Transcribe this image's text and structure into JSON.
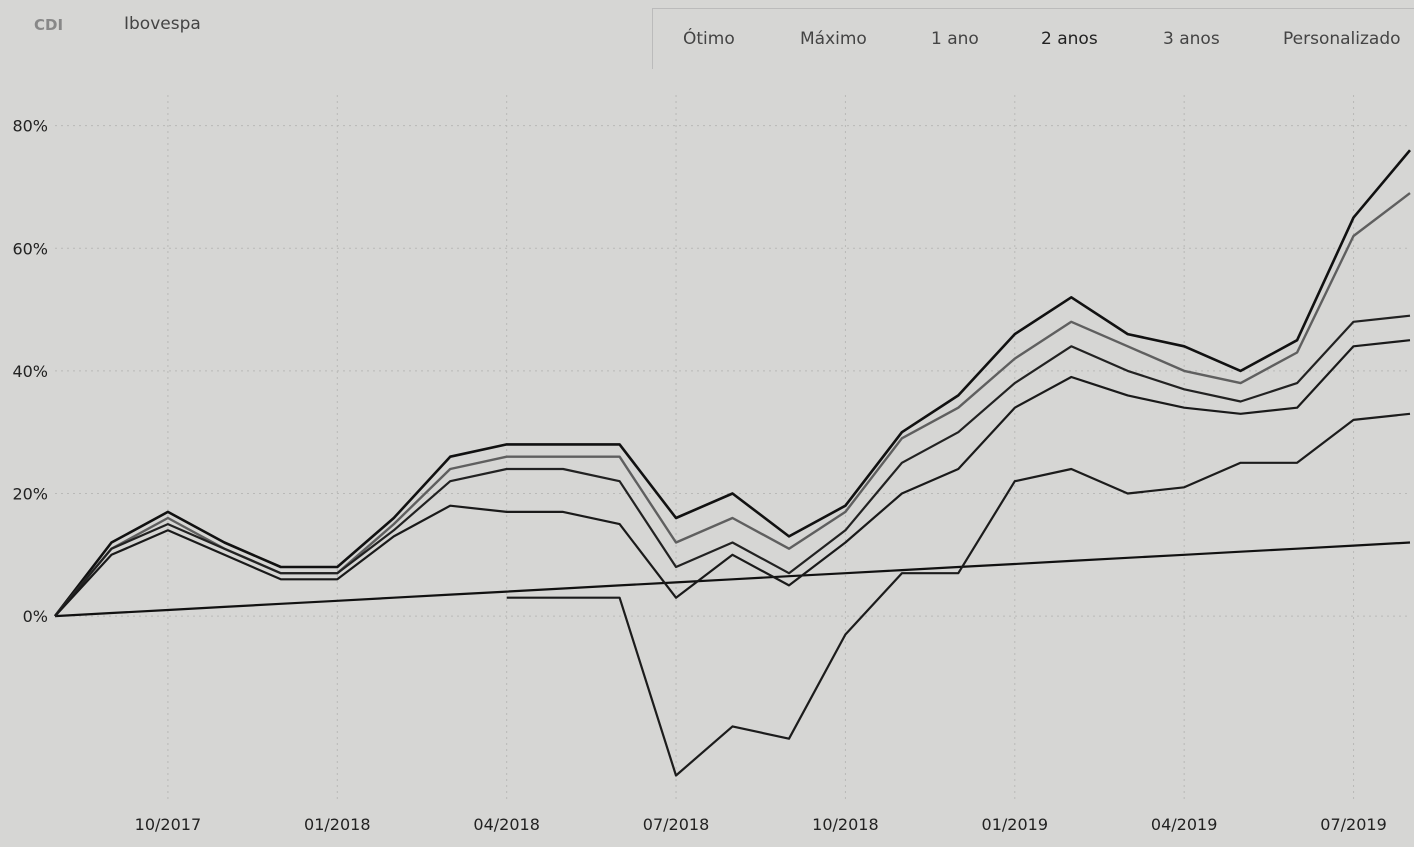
{
  "legend": {
    "items": [
      {
        "label": "CDI",
        "color": "#222222"
      },
      {
        "label": "Ibovespa",
        "color": "#222222"
      }
    ]
  },
  "range_selector": {
    "buttons": [
      "Ótimo",
      "Máximo",
      "1 ano",
      "2 anos",
      "3 anos",
      "Personalizado"
    ],
    "active": "2 anos"
  },
  "chart_data": {
    "type": "line",
    "title": "",
    "xlabel": "",
    "ylabel": "",
    "x_ticks": [
      "10/2017",
      "01/2018",
      "04/2018",
      "07/2018",
      "10/2018",
      "01/2019",
      "04/2019",
      "07/2019"
    ],
    "y_ticks": [
      "0%",
      "20%",
      "40%",
      "60%",
      "80%"
    ],
    "ylim": [
      -30,
      85
    ],
    "xlim": [
      "2017-08",
      "2019-08"
    ],
    "grid": true,
    "x": [
      "2017-08",
      "2017-09",
      "2017-10",
      "2017-11",
      "2017-12",
      "2018-01",
      "2018-02",
      "2018-03",
      "2018-04",
      "2018-05",
      "2018-06",
      "2018-07",
      "2018-08",
      "2018-09",
      "2018-10",
      "2018-11",
      "2018-12",
      "2019-01",
      "2019-02",
      "2019-03",
      "2019-04",
      "2019-05",
      "2019-06",
      "2019-07",
      "2019-08"
    ],
    "series": [
      {
        "name": "CDI",
        "color": "#111111",
        "values": [
          0,
          0.5,
          1,
          1.5,
          2,
          2.5,
          3,
          3.5,
          4,
          4.5,
          5,
          5.5,
          6,
          6.5,
          7,
          7.5,
          8,
          8.5,
          9,
          9.5,
          10,
          10.5,
          11,
          11.5,
          12
        ]
      },
      {
        "values": [
          0,
          12,
          17,
          12,
          8,
          8,
          16,
          26,
          28,
          28,
          28,
          16,
          20,
          13,
          18,
          30,
          36,
          46,
          52,
          46,
          44,
          40,
          45,
          65,
          76
        ]
      },
      {
        "values": [
          0,
          11,
          16,
          11,
          7,
          7,
          15,
          24,
          26,
          26,
          26,
          12,
          16,
          11,
          17,
          29,
          34,
          42,
          48,
          44,
          40,
          38,
          43,
          62,
          69
        ]
      },
      {
        "values": [
          0,
          11,
          15,
          11,
          7,
          7,
          14,
          22,
          24,
          24,
          22,
          8,
          12,
          7,
          14,
          25,
          30,
          38,
          44,
          40,
          37,
          35,
          38,
          48,
          49
        ]
      },
      {
        "values": [
          0,
          10,
          14,
          10,
          6,
          6,
          13,
          18,
          17,
          17,
          15,
          3,
          10,
          5,
          12,
          20,
          24,
          34,
          39,
          36,
          34,
          33,
          34,
          44,
          45
        ]
      },
      {
        "values": [
          0,
          null,
          null,
          null,
          null,
          null,
          null,
          null,
          3,
          3,
          3,
          -26,
          -18,
          -20,
          -3,
          7,
          7,
          22,
          24,
          20,
          21,
          25,
          25,
          32,
          33
        ]
      }
    ]
  }
}
